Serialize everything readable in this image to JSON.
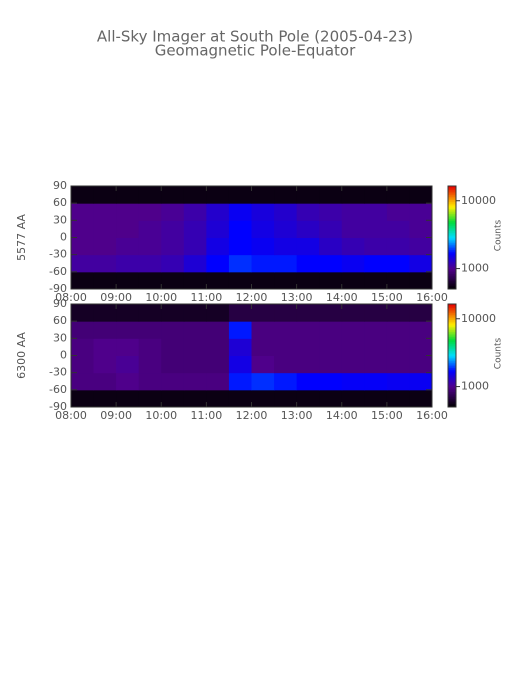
{
  "title": "All-Sky Imager at South Pole (2005-04-23)",
  "subtitle": "Geomagnetic Pole-Equator",
  "chart_data": [
    {
      "type": "heatmap",
      "ylabel": "5577 AA",
      "clabel": "Counts",
      "clog": true,
      "x_bins": [
        8,
        8.5,
        9,
        9.5,
        10,
        10.5,
        11,
        11.5,
        12,
        12.5,
        13,
        13.5,
        14,
        14.5,
        15,
        15.5,
        16
      ],
      "y_bins": [
        -90,
        -60,
        -30,
        0,
        30,
        60,
        90
      ],
      "xlim": [
        8,
        16
      ],
      "ylim": [
        -90,
        90
      ],
      "xticks": [
        {
          "value": 8,
          "label": "08:00"
        },
        {
          "value": 9,
          "label": "09:00"
        },
        {
          "value": 10,
          "label": "10:00"
        },
        {
          "value": 11,
          "label": "11:00"
        },
        {
          "value": 12,
          "label": "12:00"
        },
        {
          "value": 13,
          "label": "13:00"
        },
        {
          "value": 14,
          "label": "14:00"
        },
        {
          "value": 15,
          "label": "15:00"
        },
        {
          "value": 16,
          "label": "16:00"
        }
      ],
      "yticks": [
        -90,
        -60,
        -30,
        0,
        30,
        60,
        90
      ],
      "clim": [
        500,
        16500
      ],
      "cticks": [
        1000,
        10000
      ],
      "z": [
        [
          550,
          550,
          550,
          550,
          550,
          550,
          550,
          550,
          550,
          550,
          550,
          550,
          550,
          550,
          550,
          550
        ],
        [
          1100,
          1100,
          1150,
          1150,
          1200,
          1400,
          1700,
          1900,
          1800,
          1800,
          1700,
          1700,
          1600,
          1700,
          1700,
          1500
        ],
        [
          1000,
          1000,
          1050,
          1050,
          1100,
          1200,
          1500,
          1700,
          1600,
          1500,
          1500,
          1300,
          1200,
          1150,
          1150,
          1100
        ],
        [
          1000,
          1000,
          1000,
          1050,
          1100,
          1200,
          1400,
          1700,
          1500,
          1400,
          1300,
          1200,
          1100,
          1100,
          1100,
          1050
        ],
        [
          1000,
          1000,
          1000,
          1000,
          1050,
          1150,
          1350,
          1600,
          1450,
          1350,
          1200,
          1150,
          1100,
          1100,
          1050,
          1050
        ],
        [
          550,
          550,
          550,
          550,
          550,
          550,
          550,
          550,
          550,
          550,
          550,
          550,
          550,
          550,
          550,
          550
        ]
      ]
    },
    {
      "type": "heatmap",
      "ylabel": "6300 AA",
      "clabel": "Counts",
      "clog": true,
      "x_bins": [
        8,
        8.5,
        9,
        9.5,
        10,
        10.5,
        11,
        11.5,
        12,
        12.5,
        13,
        13.5,
        14,
        14.5,
        15,
        15.5,
        16
      ],
      "y_bins": [
        -90,
        -60,
        -30,
        0,
        30,
        60,
        90
      ],
      "xlim": [
        8,
        16
      ],
      "ylim": [
        -90,
        90
      ],
      "xticks": [
        {
          "value": 8,
          "label": "08:00"
        },
        {
          "value": 9,
          "label": "09:00"
        },
        {
          "value": 10,
          "label": "10:00"
        },
        {
          "value": 11,
          "label": "11:00"
        },
        {
          "value": 12,
          "label": "12:00"
        },
        {
          "value": 13,
          "label": "13:00"
        },
        {
          "value": 14,
          "label": "14:00"
        },
        {
          "value": 15,
          "label": "15:00"
        },
        {
          "value": 16,
          "label": "16:00"
        }
      ],
      "yticks": [
        -90,
        -60,
        -30,
        0,
        30,
        60,
        90
      ],
      "clim": [
        500,
        16500
      ],
      "cticks": [
        1000,
        10000
      ],
      "z": [
        [
          550,
          550,
          550,
          550,
          550,
          550,
          550,
          550,
          550,
          550,
          550,
          550,
          550,
          550,
          550,
          550
        ],
        [
          950,
          950,
          1000,
          950,
          950,
          950,
          950,
          1800,
          1900,
          1800,
          1700,
          1700,
          1650,
          1650,
          1600,
          1600
        ],
        [
          950,
          1000,
          1050,
          950,
          900,
          900,
          900,
          1500,
          1000,
          950,
          950,
          950,
          950,
          950,
          950,
          950
        ],
        [
          950,
          1000,
          1000,
          950,
          900,
          900,
          900,
          1400,
          950,
          950,
          950,
          950,
          950,
          950,
          950,
          950
        ],
        [
          900,
          900,
          900,
          900,
          900,
          900,
          900,
          1800,
          950,
          950,
          950,
          950,
          950,
          950,
          950,
          950
        ],
        [
          600,
          600,
          600,
          600,
          600,
          600,
          600,
          700,
          700,
          700,
          700,
          700,
          700,
          700,
          700,
          700
        ]
      ]
    }
  ]
}
